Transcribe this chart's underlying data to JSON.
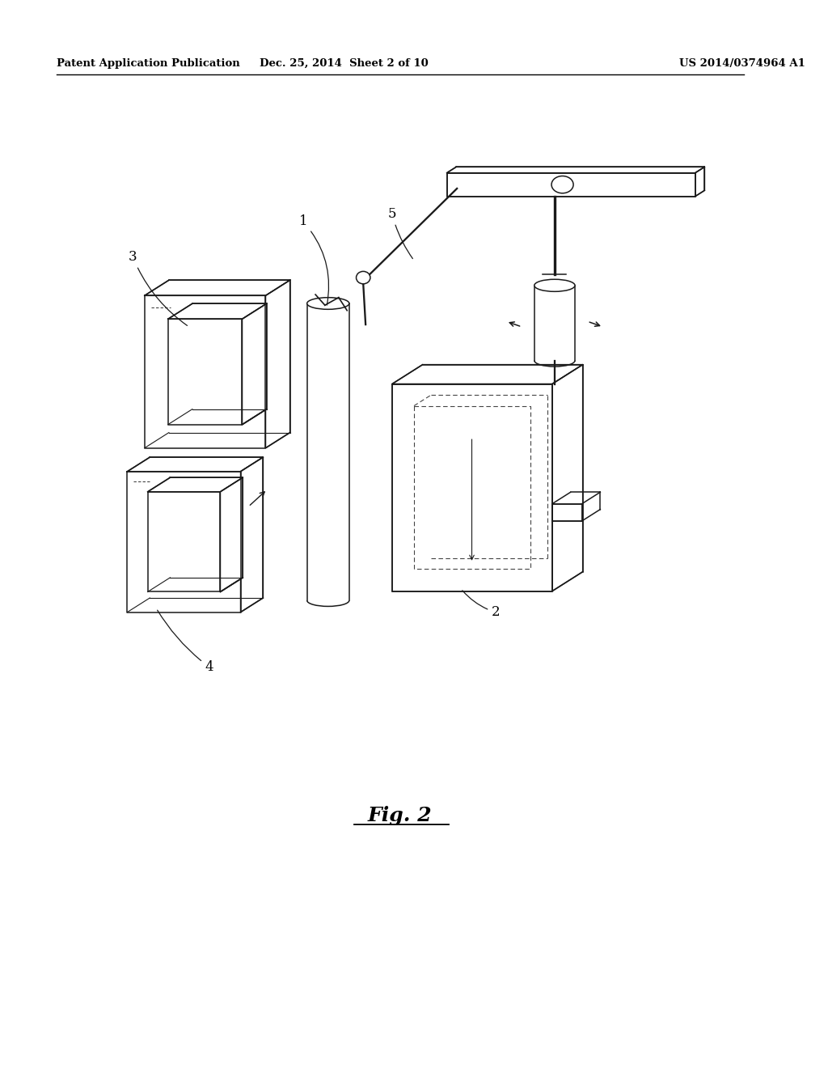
{
  "bg_color": "#ffffff",
  "header_left": "Patent Application Publication",
  "header_mid": "Dec. 25, 2014  Sheet 2 of 10",
  "header_right": "US 2014/0374964 A1",
  "fig_label": "Fig. 2",
  "line_color": "#1a1a1a",
  "dashed_color": "#444444",
  "lw": 1.1,
  "lw_thin": 0.8
}
